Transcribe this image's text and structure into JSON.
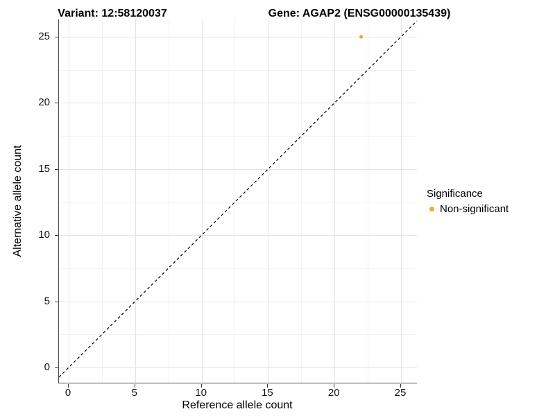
{
  "chart_data": {
    "type": "scatter",
    "title_left": "Variant: 12:58120037",
    "title_right": "Gene: AGAP2 (ENSG00000135439)",
    "xlabel": "Reference allele count",
    "ylabel": "Alternative allele count",
    "x_ticks": [
      0,
      5,
      10,
      15,
      20,
      25
    ],
    "y_ticks": [
      0,
      5,
      10,
      15,
      20,
      25
    ],
    "x_minor": [
      2.5,
      7.5,
      12.5,
      17.5,
      22.5
    ],
    "y_minor": [
      2.5,
      7.5,
      12.5,
      17.5,
      22.5
    ],
    "xlim": [
      -0.73,
      26.2
    ],
    "ylim": [
      -1.15,
      26.31
    ],
    "grid": true,
    "points": [
      {
        "x": 22,
        "y": 25,
        "significance": "Non-significant"
      }
    ],
    "identity_line": {
      "style": "dashed",
      "slope": 1,
      "intercept": 0
    },
    "colors": {
      "Non-significant": "#faa43a"
    },
    "style": {
      "grid_major": "#e4e4e4",
      "grid_minor": "#f2f2f2",
      "axis_line": "#4d4d4d",
      "tick_mark": "#333333",
      "dashed_line": "#000000",
      "background": "#ffffff"
    },
    "legend": {
      "title": "Significance",
      "position": "right",
      "items": [
        {
          "label": "Non-significant",
          "color": "#faa43a"
        }
      ]
    }
  }
}
